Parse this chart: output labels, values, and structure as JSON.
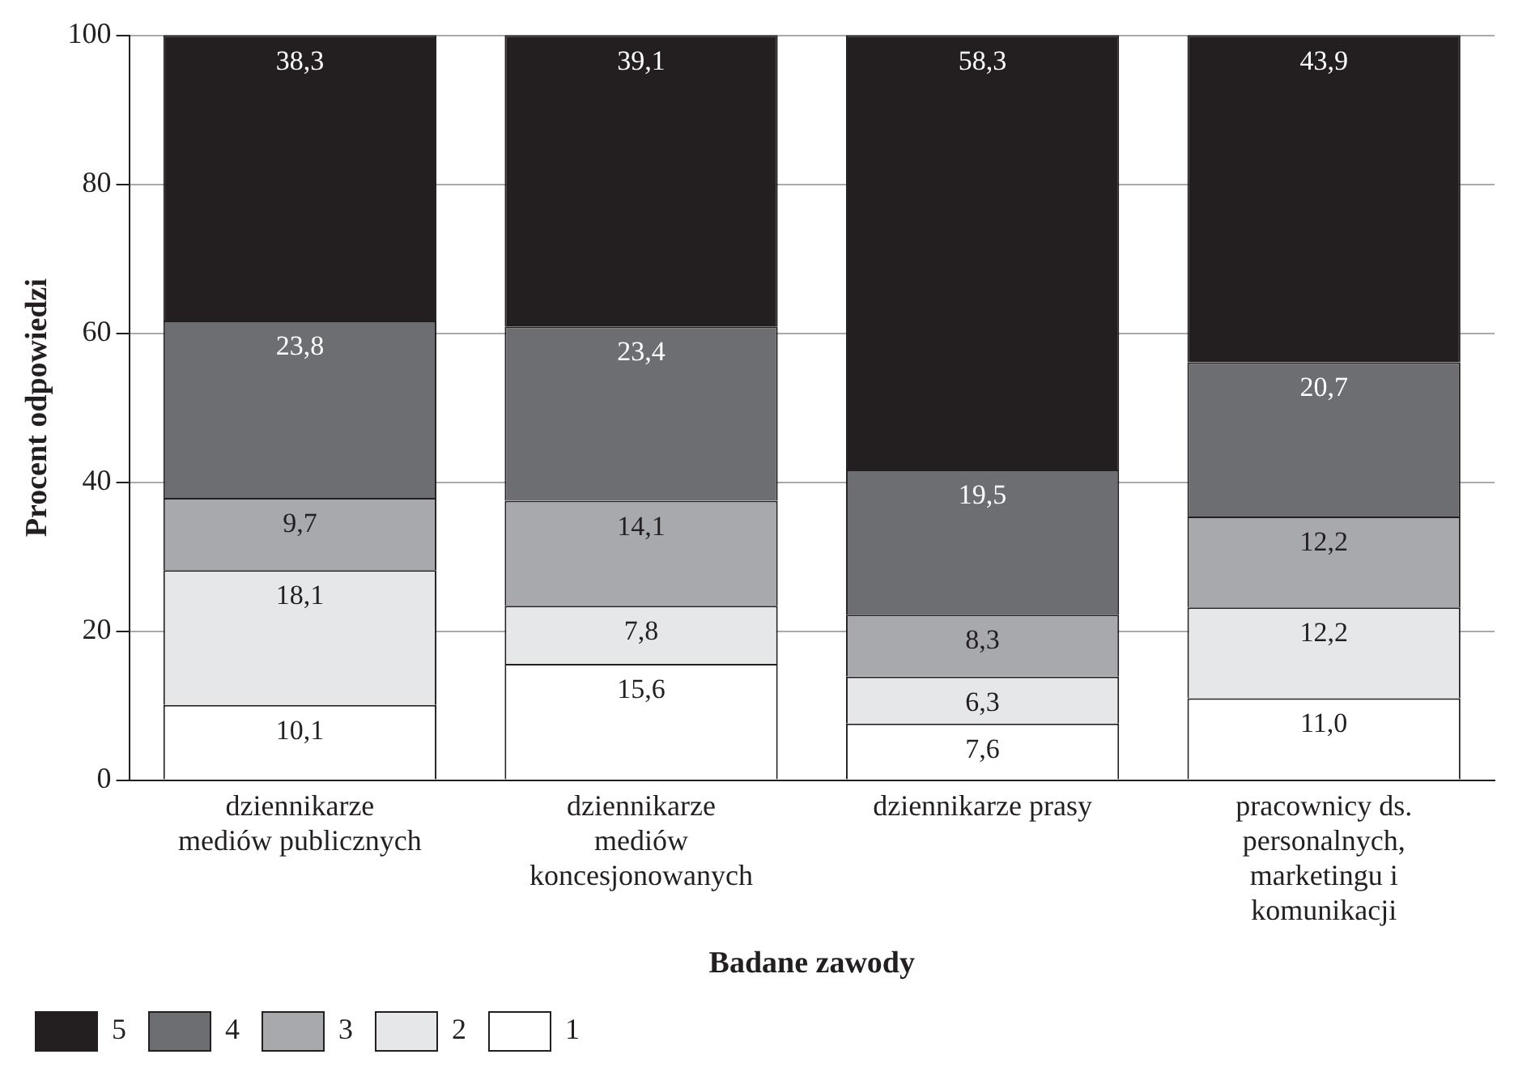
{
  "chart_data": {
    "type": "bar",
    "stacked": true,
    "xlabel": "Badane zawody",
    "ylabel": "Procent odpowiedzi",
    "categories": [
      "dziennikarze mediów publicznych",
      "dziennikarze mediów koncesjonowanych",
      "dziennikarze prasy",
      "pracownicy ds. personalnych, marketingu i komunikacji"
    ],
    "series": [
      {
        "name": "1",
        "color": "#ffffff",
        "values": [
          10.1,
          15.6,
          7.6,
          11.0
        ],
        "value_labels": [
          "10,1",
          "15,6",
          "7,6",
          "11,0"
        ]
      },
      {
        "name": "2",
        "color": "#e6e7e8",
        "values": [
          18.1,
          7.8,
          6.3,
          12.2
        ],
        "value_labels": [
          "18,1",
          "7,8",
          "6,3",
          "12,2"
        ]
      },
      {
        "name": "3",
        "color": "#a7a9ac",
        "values": [
          9.7,
          14.1,
          8.3,
          12.2
        ],
        "value_labels": [
          "9,7",
          "14,1",
          "8,3",
          "12,2"
        ]
      },
      {
        "name": "4",
        "color": "#6d6e71",
        "values": [
          23.8,
          23.4,
          19.5,
          20.7
        ],
        "value_labels": [
          "23,8",
          "23,4",
          "19,5",
          "20,7"
        ]
      },
      {
        "name": "5",
        "color": "#231f20",
        "values": [
          38.3,
          39.1,
          58.3,
          43.9
        ],
        "value_labels": [
          "38,3",
          "39,1",
          "58,3",
          "43,9"
        ]
      }
    ],
    "ylim": [
      0,
      100
    ],
    "yticks": [
      0,
      20,
      40,
      60,
      80,
      100
    ],
    "grid": "y",
    "legend": "bottom"
  }
}
